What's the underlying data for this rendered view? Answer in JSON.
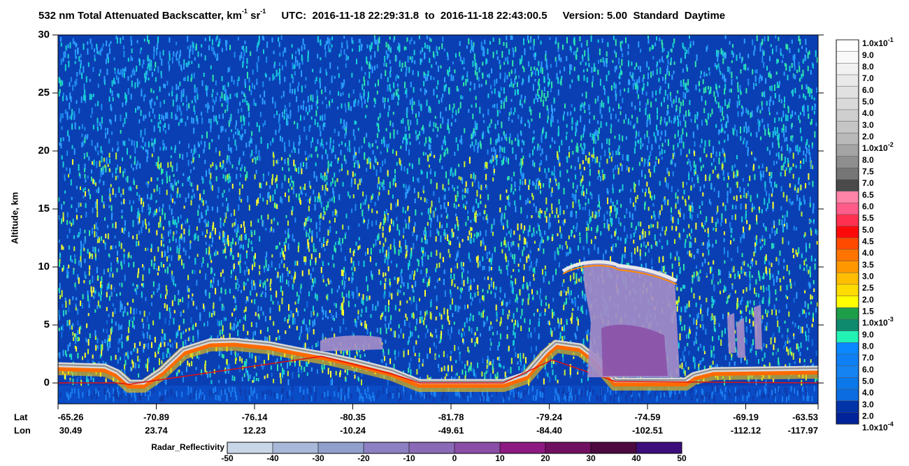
{
  "chart_data": {
    "type": "heatmap",
    "title": {
      "main": "532 nm Total Attenuated Backscatter, km",
      "exp_1": "-1",
      "unit_mid": " sr",
      "exp_2": "-1",
      "time_range": "UTC:  2016-11-18 22:29:31.8  to  2016-11-18 22:43:00.5",
      "version": "Version: 5.00  Standard  Daytime"
    },
    "y_label": "Altitude, km",
    "ylim": [
      -1.8,
      30
    ],
    "yticks": [
      0,
      5,
      10,
      15,
      20,
      25,
      30
    ],
    "x_rows": [
      {
        "name": "Lat",
        "labels": [
          "-65.26",
          "-70.89",
          "-76.14",
          "-80.35",
          "-81.78",
          "-79.24",
          "-74.59",
          "-69.19",
          "-63.53"
        ]
      },
      {
        "name": "Lon",
        "labels": [
          "30.49",
          "23.74",
          "12.23",
          "-10.24",
          "-49.61",
          "-84.40",
          "-102.51",
          "-112.12",
          "-117.97"
        ]
      }
    ],
    "backscatter_colorbar": {
      "labels": [
        {
          "mantissa": "1.0x10",
          "exponent": "-1"
        },
        "9.0",
        "8.0",
        "7.0",
        "6.0",
        "5.0",
        "4.0",
        "3.0",
        "2.0",
        {
          "mantissa": "1.0x10",
          "exponent": "-2"
        },
        "8.0",
        "7.5",
        "7.0",
        "6.5",
        "6.0",
        "5.5",
        "5.0",
        "4.5",
        "4.0",
        "3.5",
        "3.0",
        "2.5",
        "2.0",
        "1.5",
        {
          "mantissa": "1.0x10",
          "exponent": "-3"
        },
        "9.0",
        "8.0",
        "7.0",
        "6.0",
        "5.0",
        "4.0",
        "3.0",
        "2.0",
        {
          "mantissa": "1.0x10",
          "exponent": "-4"
        }
      ],
      "colors": [
        "#ffffff",
        "#f9f9f9",
        "#f1f1f1",
        "#e9e9e9",
        "#e1e1e1",
        "#d9d9d9",
        "#cfcfcf",
        "#c5c5c5",
        "#b9b9b9",
        "#a4a4a4",
        "#8e8e8e",
        "#767676",
        "#4a4a4a",
        "#ff84a8",
        "#ff5c8a",
        "#ff3050",
        "#ff0a0a",
        "#ff4a00",
        "#ff7400",
        "#ff9800",
        "#ffbe00",
        "#ffdc00",
        "#ffff00",
        "#1f9e4a",
        "#0e8a6e",
        "#22f2b4",
        "#0a88ff",
        "#0f80f4",
        "#1584f2",
        "#0b78ea",
        "#0a6ce0",
        "#0233a8",
        "#00239a"
      ]
    },
    "radar_colorbar": {
      "label": "Radar_Reflectivity",
      "lim": [
        -50,
        50
      ],
      "ticks": [
        -50,
        -40,
        -30,
        -20,
        -10,
        0,
        10,
        20,
        30,
        40,
        50
      ],
      "colors": [
        "#c8d6e8",
        "#a8b8d8",
        "#909fcc",
        "#8c80c2",
        "#8a6ab6",
        "#8a4ea6",
        "#8c1a82",
        "#701060",
        "#4c0a40",
        "#3c0e7c"
      ]
    }
  }
}
